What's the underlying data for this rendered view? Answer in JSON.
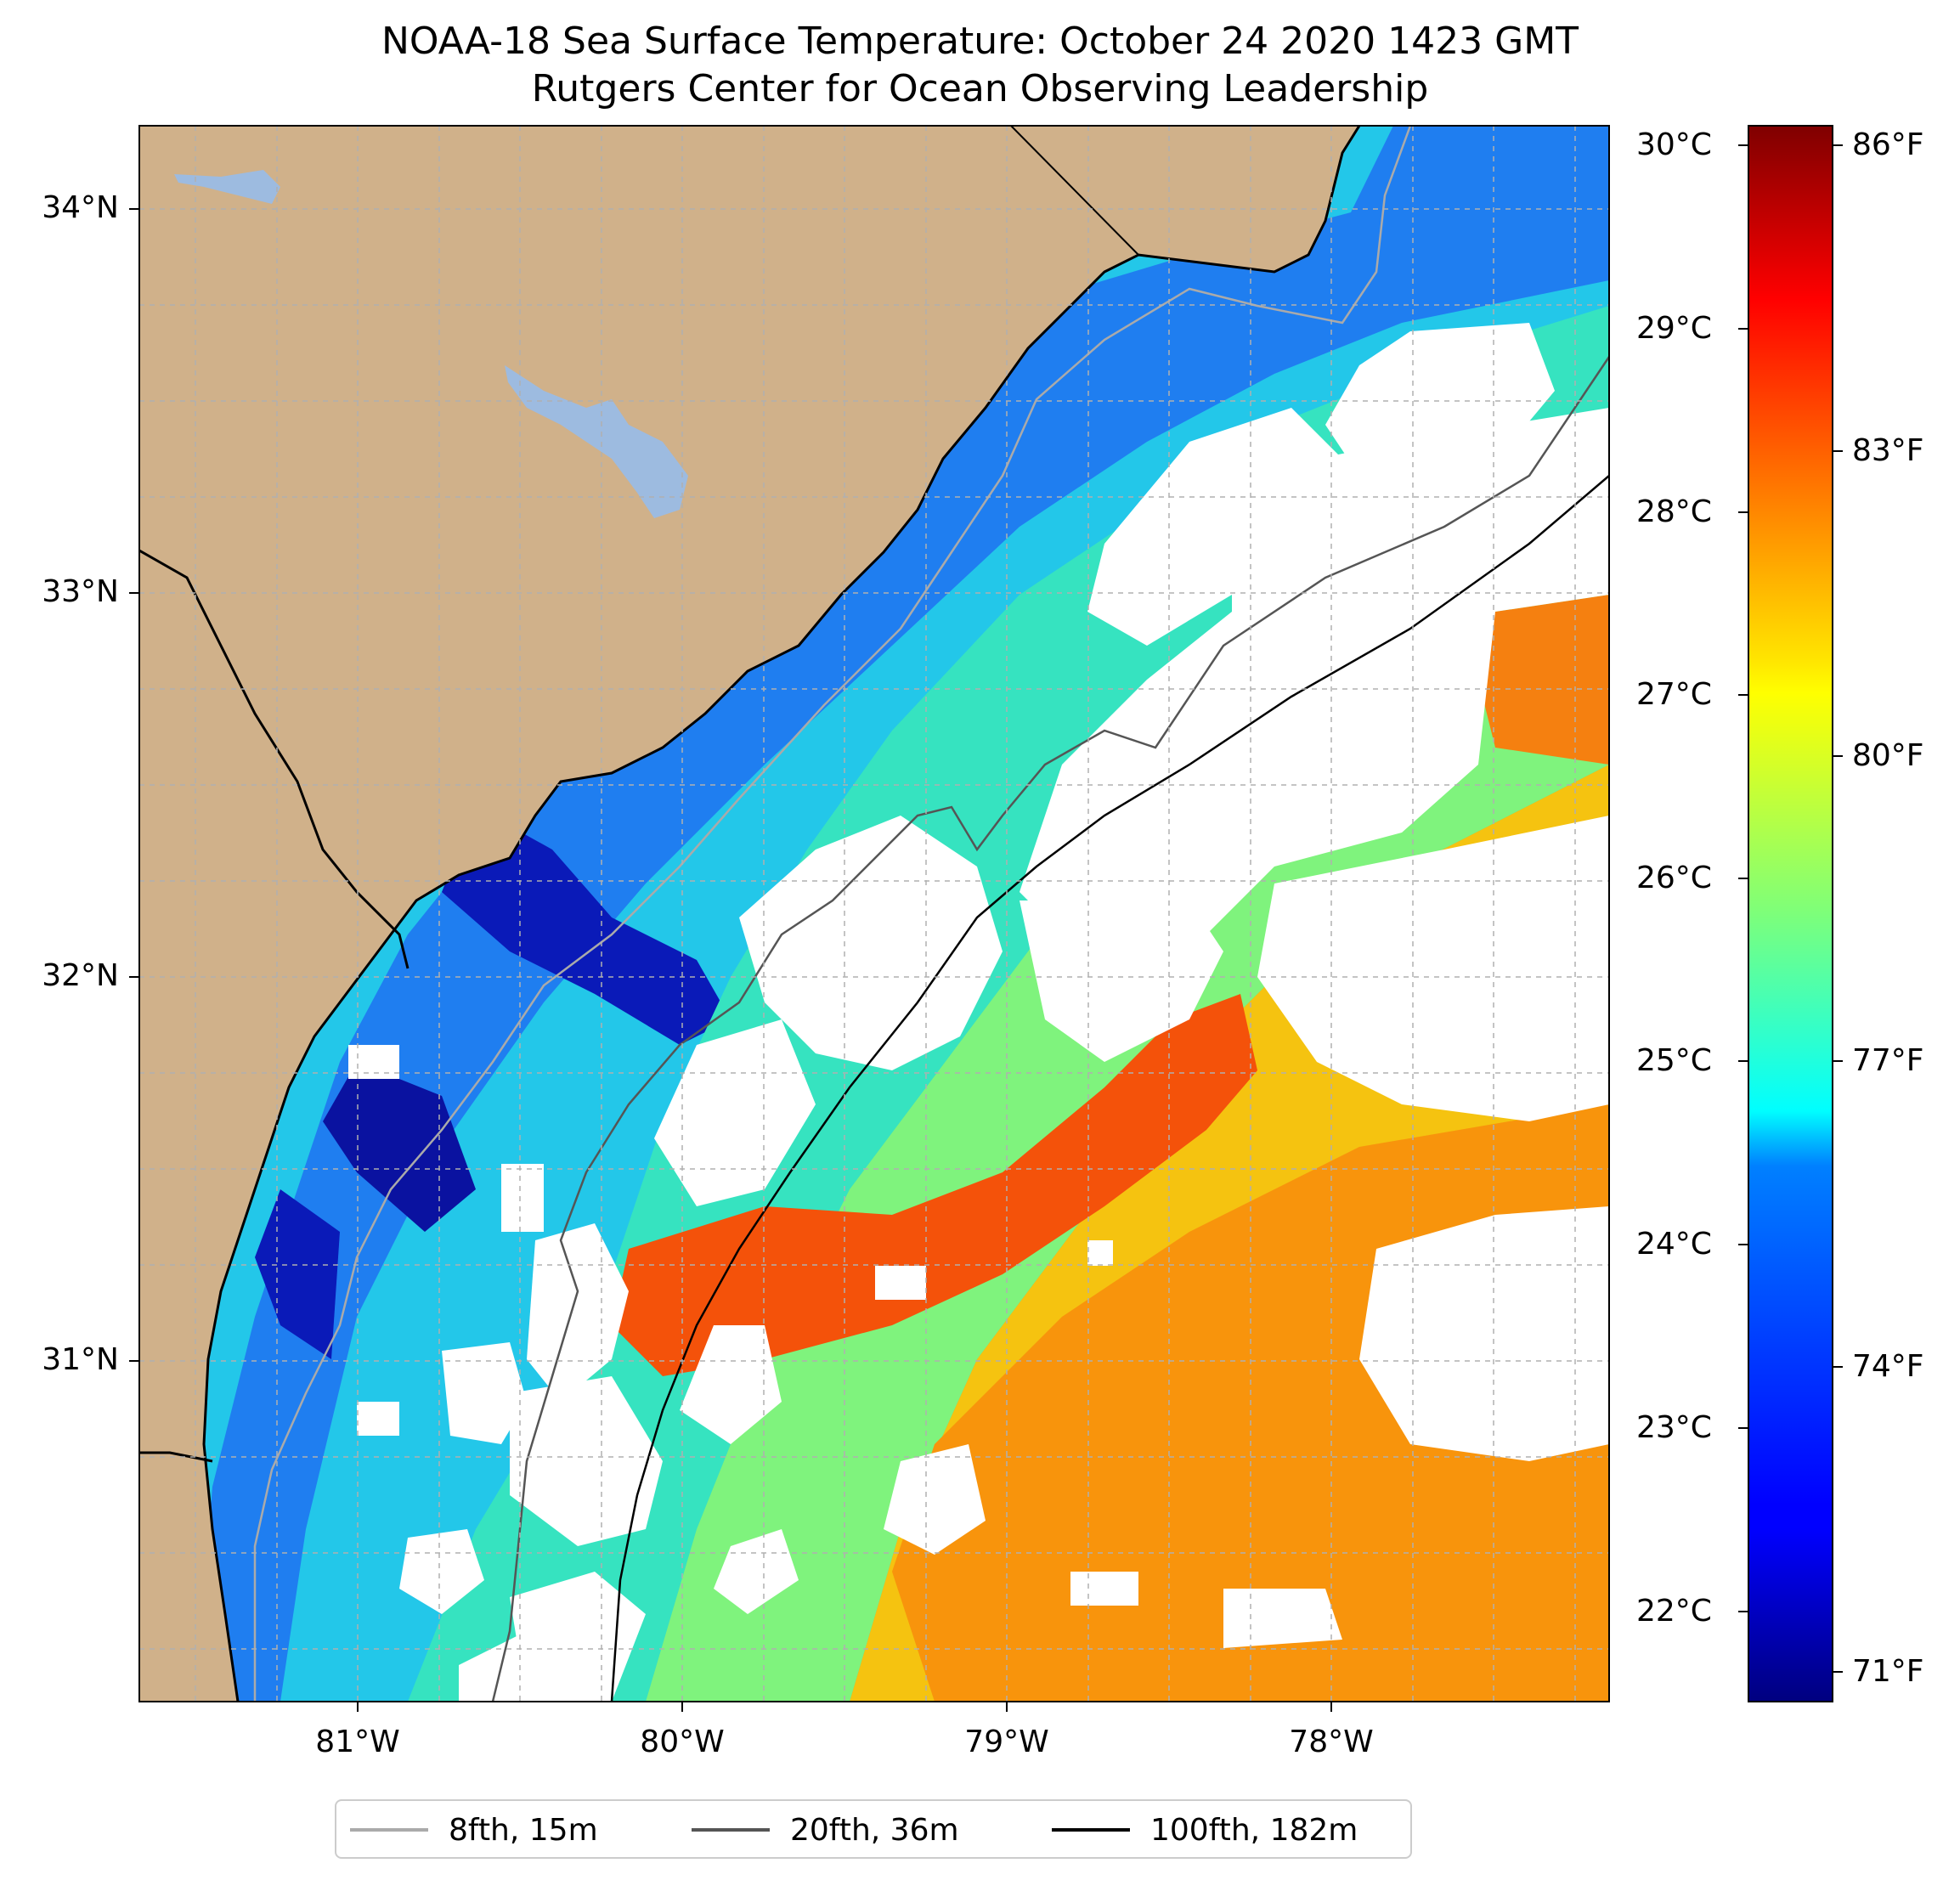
{
  "title_line1": "NOAA-18 Sea Surface Temperature: October 24 2020 1423 GMT",
  "title_line2": "Rutgers Center for Ocean Observing Leadership",
  "colors": {
    "land": "#d0b18a",
    "lakes": "#9dbbe0",
    "cloud": "#ffffff",
    "grid": "#b0b0b0",
    "coast": "#000000",
    "iso_8fth": "#aaaaaa",
    "iso_20fth": "#555555",
    "iso_100fth": "#000000"
  },
  "latitude_labels": [
    "34°N",
    "33°N",
    "32°N",
    "31°N"
  ],
  "longitude_labels": [
    "81°W",
    "80°W",
    "79°W",
    "78°W"
  ],
  "colorbar": {
    "colormap": "jet",
    "celsius_labels": [
      "30°C",
      "29°C",
      "28°C",
      "27°C",
      "26°C",
      "25°C",
      "24°C",
      "23°C",
      "22°C"
    ],
    "fahrenheit_labels": [
      "86°F",
      "83°F",
      "80°F",
      "77°F",
      "74°F",
      "71°F"
    ],
    "range_f": [
      70.3,
      86.3
    ]
  },
  "legend": [
    {
      "label": "8fth, 15m",
      "color": "#aaaaaa"
    },
    {
      "label": "20fth, 36m",
      "color": "#555555"
    },
    {
      "label": "100fth, 182m",
      "color": "#000000"
    }
  ],
  "map_extent": {
    "lon": [
      -81.67,
      -77.15
    ],
    "lat": [
      30.05,
      34.22
    ]
  }
}
